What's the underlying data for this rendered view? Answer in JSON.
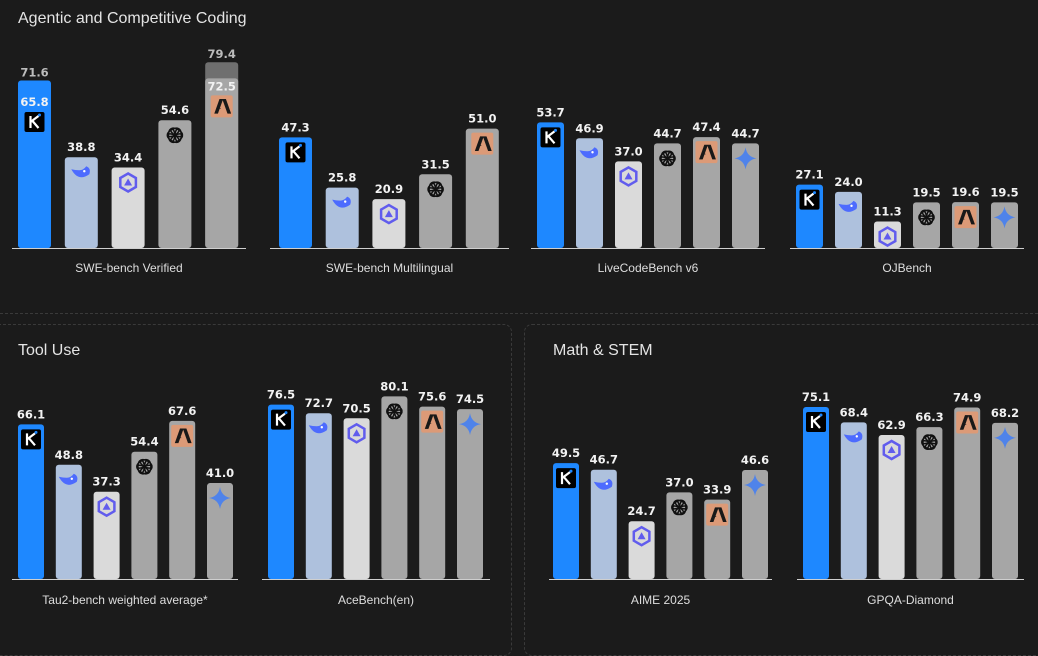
{
  "sections": {
    "coding": "Agentic and Competitive Coding",
    "tool": "Tool Use",
    "math": "Math & STEM"
  },
  "colors": {
    "kimi": "#1e88ff",
    "deepseek": "#aec1dd",
    "qwen": "#dadada",
    "openai": "#a6a6a6",
    "anthropic": "#a6a6a6",
    "gemini": "#a6a6a6",
    "anthropic_badge": "#dc9a77",
    "highlight_alt": "#6f6f6f"
  },
  "models": [
    "kimi",
    "deepseek",
    "qwen",
    "openai",
    "anthropic",
    "gemini"
  ],
  "icons": {
    "kimi": "kimi-k-icon",
    "deepseek": "deepseek-whale-icon",
    "qwen": "qwen-icon",
    "openai": "openai-knot-icon",
    "anthropic": "anthropic-a-icon",
    "gemini": "gemini-sparkle-icon"
  },
  "chart_data": [
    {
      "type": "bar",
      "title": "SWE-bench Verified",
      "section": "coding",
      "series": [
        {
          "model": "kimi",
          "value": 65.8,
          "alt_value": 71.6
        },
        {
          "model": "deepseek",
          "value": 38.8
        },
        {
          "model": "qwen",
          "value": 34.4
        },
        {
          "model": "openai",
          "value": 54.6
        },
        {
          "model": "anthropic",
          "value": 72.5,
          "alt_value": 79.4
        }
      ]
    },
    {
      "type": "bar",
      "title": "SWE-bench Multilingual",
      "section": "coding",
      "series": [
        {
          "model": "kimi",
          "value": 47.3
        },
        {
          "model": "deepseek",
          "value": 25.8
        },
        {
          "model": "qwen",
          "value": 20.9
        },
        {
          "model": "openai",
          "value": 31.5
        },
        {
          "model": "anthropic",
          "value": 51.0
        }
      ]
    },
    {
      "type": "bar",
      "title": "LiveCodeBench v6",
      "section": "coding",
      "series": [
        {
          "model": "kimi",
          "value": 53.7
        },
        {
          "model": "deepseek",
          "value": 46.9
        },
        {
          "model": "qwen",
          "value": 37.0
        },
        {
          "model": "openai",
          "value": 44.7
        },
        {
          "model": "anthropic",
          "value": 47.4
        },
        {
          "model": "gemini",
          "value": 44.7
        }
      ]
    },
    {
      "type": "bar",
      "title": "OJBench",
      "section": "coding",
      "series": [
        {
          "model": "kimi",
          "value": 27.1
        },
        {
          "model": "deepseek",
          "value": 24.0
        },
        {
          "model": "qwen",
          "value": 11.3
        },
        {
          "model": "openai",
          "value": 19.5
        },
        {
          "model": "anthropic",
          "value": 19.6
        },
        {
          "model": "gemini",
          "value": 19.5
        }
      ]
    },
    {
      "type": "bar",
      "title": "Tau2-bench weighted average*",
      "section": "tool",
      "series": [
        {
          "model": "kimi",
          "value": 66.1
        },
        {
          "model": "deepseek",
          "value": 48.8
        },
        {
          "model": "qwen",
          "value": 37.3
        },
        {
          "model": "openai",
          "value": 54.4
        },
        {
          "model": "anthropic",
          "value": 67.6
        },
        {
          "model": "gemini",
          "value": 41.0
        }
      ]
    },
    {
      "type": "bar",
      "title": "AceBench(en)",
      "section": "tool",
      "series": [
        {
          "model": "kimi",
          "value": 76.5
        },
        {
          "model": "deepseek",
          "value": 72.7
        },
        {
          "model": "qwen",
          "value": 70.5
        },
        {
          "model": "openai",
          "value": 80.1
        },
        {
          "model": "anthropic",
          "value": 75.6
        },
        {
          "model": "gemini",
          "value": 74.5
        }
      ]
    },
    {
      "type": "bar",
      "title": "AIME 2025",
      "section": "math",
      "series": [
        {
          "model": "kimi",
          "value": 49.5
        },
        {
          "model": "deepseek",
          "value": 46.7
        },
        {
          "model": "qwen",
          "value": 24.7
        },
        {
          "model": "openai",
          "value": 37.0
        },
        {
          "model": "anthropic",
          "value": 33.9
        },
        {
          "model": "gemini",
          "value": 46.6
        }
      ]
    },
    {
      "type": "bar",
      "title": "GPQA-Diamond",
      "section": "math",
      "series": [
        {
          "model": "kimi",
          "value": 75.1
        },
        {
          "model": "deepseek",
          "value": 68.4
        },
        {
          "model": "qwen",
          "value": 62.9
        },
        {
          "model": "openai",
          "value": 66.3
        },
        {
          "model": "anthropic",
          "value": 74.9
        },
        {
          "model": "gemini",
          "value": 68.2
        }
      ]
    }
  ]
}
